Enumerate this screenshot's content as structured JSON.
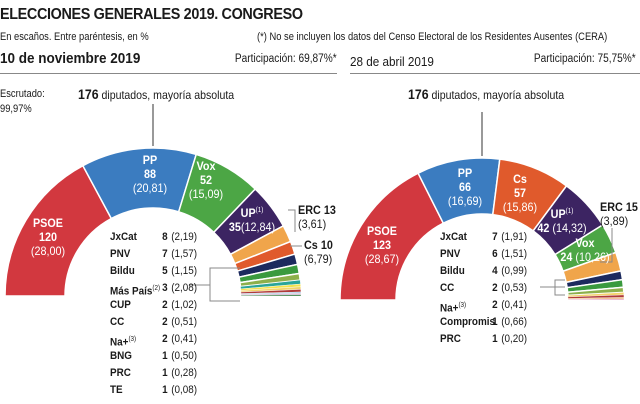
{
  "header": {
    "title": "ELECCIONES GENERALES 2019. CONGRESO",
    "subtitle": "En escaños. Entre paréntesis, en %",
    "note": "(*) No se incluyen los datos del Censo Electoral de los Residentes Ausentes (CERA)"
  },
  "chart_data": [
    {
      "type": "pie",
      "title": "10 de noviembre 2019",
      "participation": "Participación: 69,87%*",
      "scrutiny_label": "Escrutado:",
      "scrutiny_value": "99,97%",
      "majority_seats": "176",
      "majority_label": "diputados, mayoría absoluta",
      "total_seats": 350,
      "parties": [
        {
          "name": "PSOE",
          "seats": 120,
          "pct": "(28,00)",
          "color": "#d2383f"
        },
        {
          "name": "PP",
          "seats": 88,
          "pct": "(20,81)",
          "color": "#3b7cc0"
        },
        {
          "name": "Vox",
          "seats": 52,
          "pct": "(15,09)",
          "color": "#4ca645"
        },
        {
          "name": "UP",
          "sup": "(1)",
          "seats": 35,
          "pct": "(12,84)",
          "color": "#3c2462"
        },
        {
          "name": "ERC",
          "seats": 13,
          "pct": "(3,61)",
          "color": "#f0a54b"
        },
        {
          "name": "Cs",
          "seats": 10,
          "pct": "(6,79)",
          "color": "#e05a2c"
        },
        {
          "name": "JxCat",
          "seats": 8,
          "pct": "(2,19)",
          "color": "#1c2a5e"
        },
        {
          "name": "PNV",
          "seats": 7,
          "pct": "(1,57)",
          "color": "#3a9a3e"
        },
        {
          "name": "Bildu",
          "seats": 5,
          "pct": "(1,15)",
          "color": "#8db04b"
        },
        {
          "name": "Más País",
          "sup": "(2)",
          "seats": 3,
          "pct": "(2,08)",
          "color": "#2aa59a"
        },
        {
          "name": "CUP",
          "seats": 2,
          "pct": "(1,02)",
          "color": "#f3e24c"
        },
        {
          "name": "CC",
          "seats": 2,
          "pct": "(0,51)",
          "color": "#f4d36b"
        },
        {
          "name": "Na+",
          "sup": "(3)",
          "seats": 2,
          "pct": "(0,41)",
          "color": "#b03a3a"
        },
        {
          "name": "BNG",
          "seats": 1,
          "pct": "(0,50)",
          "color": "#9cc4e4"
        },
        {
          "name": "PRC",
          "seats": 1,
          "pct": "(0,28)",
          "color": "#c9a0c8"
        },
        {
          "name": "TE",
          "seats": 1,
          "pct": "(0,08)",
          "color": "#2d7a3a"
        }
      ]
    },
    {
      "type": "pie",
      "title": "28 de abril 2019",
      "participation": "Participación: 75,75%*",
      "majority_seats": "176",
      "majority_label": "diputados, mayoría absoluta",
      "total_seats": 350,
      "parties": [
        {
          "name": "PSOE",
          "seats": 123,
          "pct": "(28,67)",
          "color": "#d2383f"
        },
        {
          "name": "PP",
          "seats": 66,
          "pct": "(16,69)",
          "color": "#3b7cc0"
        },
        {
          "name": "Cs",
          "seats": 57,
          "pct": "(15,86)",
          "color": "#e05a2c"
        },
        {
          "name": "UP",
          "sup": "(1)",
          "seats": 42,
          "pct": "(14,32)",
          "color": "#3c2462"
        },
        {
          "name": "Vox",
          "seats": 24,
          "pct": "(10,26)",
          "color": "#4ca645"
        },
        {
          "name": "ERC",
          "seats": 15,
          "pct": "(3,89)",
          "color": "#f0a54b"
        },
        {
          "name": "JxCat",
          "seats": 7,
          "pct": "(1,91)",
          "color": "#1c2a5e"
        },
        {
          "name": "PNV",
          "seats": 6,
          "pct": "(1,51)",
          "color": "#3a9a3e"
        },
        {
          "name": "Bildu",
          "seats": 4,
          "pct": "(0,99)",
          "color": "#8db04b"
        },
        {
          "name": "CC",
          "seats": 2,
          "pct": "(0,53)",
          "color": "#f4d36b"
        },
        {
          "name": "Na+",
          "sup": "(3)",
          "seats": 2,
          "pct": "(0,41)",
          "color": "#b03a3a"
        },
        {
          "name": "Compromis",
          "seats": 1,
          "pct": "(0,66)",
          "color": "#e8963c"
        },
        {
          "name": "PRC",
          "seats": 1,
          "pct": "(0,20)",
          "color": "#e6a8c8"
        }
      ]
    }
  ]
}
